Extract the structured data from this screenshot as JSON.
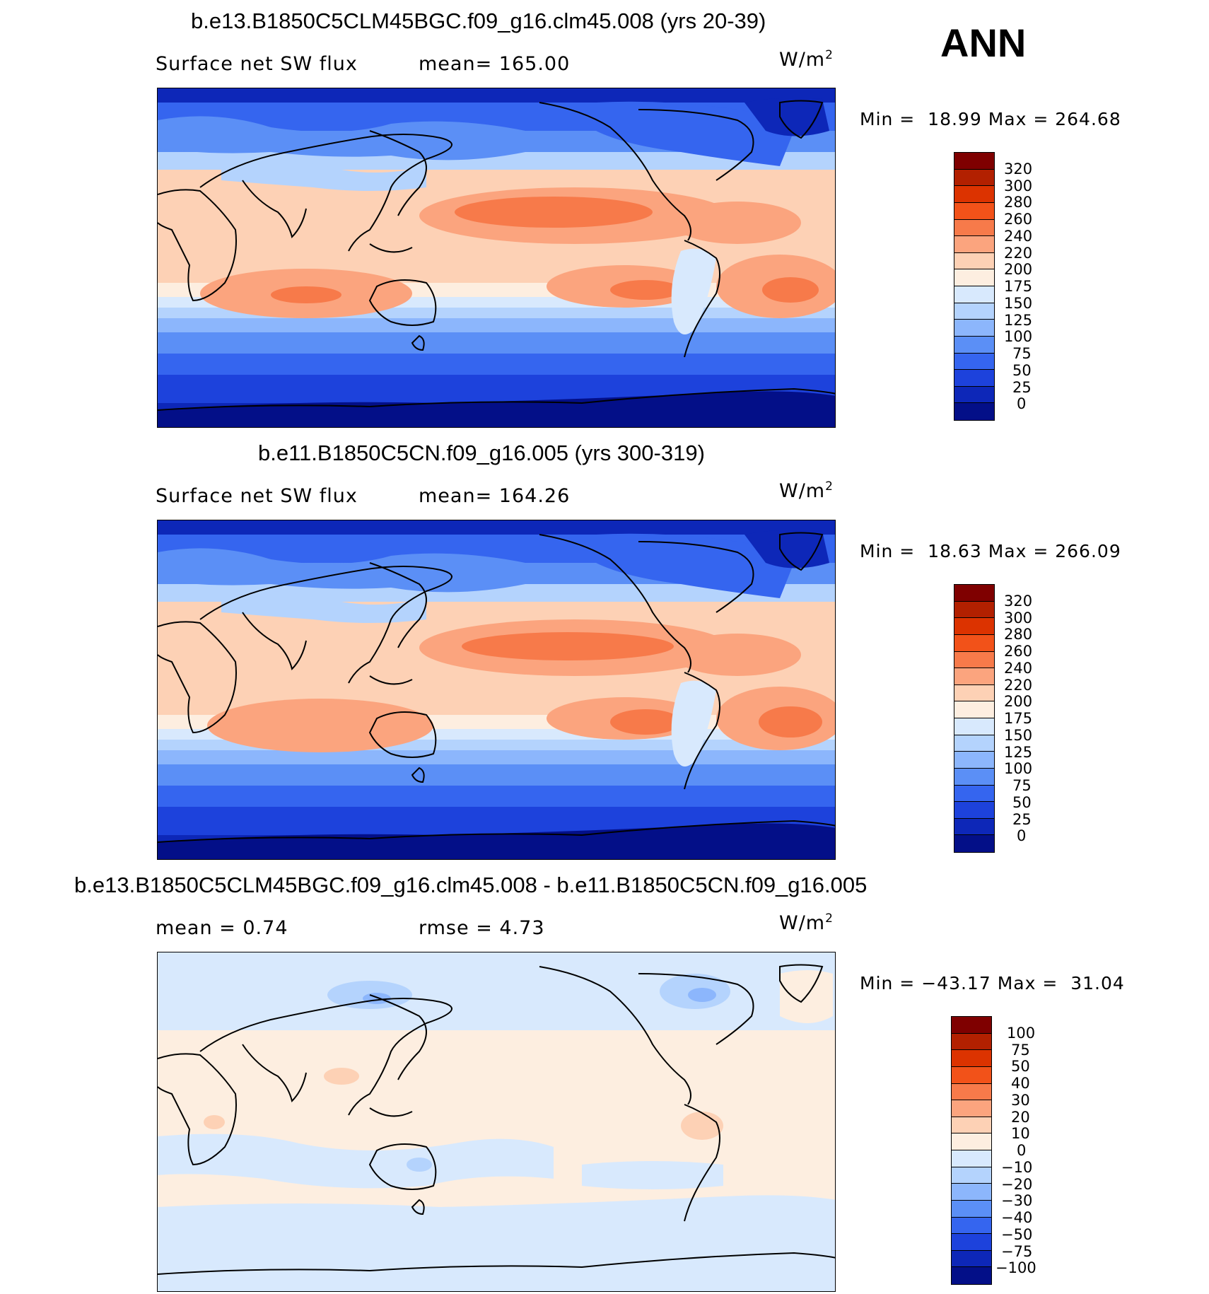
{
  "season": "ANN",
  "panels": [
    {
      "title": "b.e13.B1850C5CLM45BGC.f09_g16.clm45.008 (yrs 20-39)",
      "left_label": "Surface net SW flux",
      "stat_label": "mean=",
      "stat_value": "165.00",
      "units": "W/m",
      "units_sup": "2",
      "min_label": "Min =",
      "min_value": "18.99",
      "max_label": "Max =",
      "max_value": "264.68",
      "colorbar_levels": [
        "320",
        "300",
        "280",
        "260",
        "240",
        "220",
        "200",
        "175",
        "150",
        "125",
        "100",
        "75",
        "50",
        "25",
        "0"
      ]
    },
    {
      "title": "b.e11.B1850C5CN.f09_g16.005 (yrs 300-319)",
      "left_label": "Surface net SW flux",
      "stat_label": "mean=",
      "stat_value": "164.26",
      "units": "W/m",
      "units_sup": "2",
      "min_label": "Min =",
      "min_value": "18.63",
      "max_label": "Max =",
      "max_value": "266.09",
      "colorbar_levels": [
        "320",
        "300",
        "280",
        "260",
        "240",
        "220",
        "200",
        "175",
        "150",
        "125",
        "100",
        "75",
        "50",
        "25",
        "0"
      ]
    },
    {
      "title": "b.e13.B1850C5CLM45BGC.f09_g16.clm45.008 - b.e11.B1850C5CN.f09_g16.005",
      "left_label": "mean =",
      "left_value": "0.74",
      "stat_label": "rmse =",
      "stat_value": "4.73",
      "units": "W/m",
      "units_sup": "2",
      "min_label": "Min =",
      "min_value": "−43.17",
      "max_label": "Max =",
      "max_value": "31.04",
      "colorbar_levels": [
        "100",
        "75",
        "50",
        "40",
        "30",
        "20",
        "10",
        "0",
        "−10",
        "−20",
        "−30",
        "−40",
        "−50",
        "−75",
        "−100"
      ]
    }
  ],
  "colors": {
    "abs_scale": [
      "#7f0000",
      "#b22000",
      "#dc3300",
      "#f25219",
      "#f77a4a",
      "#fba47e",
      "#fdd1b5",
      "#fdeee0",
      "#d8e9fd",
      "#b4d3fd",
      "#8cb6fc",
      "#5b8ff6",
      "#3565ef",
      "#1d42dc",
      "#0d27b8",
      "#030f88"
    ],
    "diff_scale": [
      "#7f0000",
      "#b22000",
      "#dc3300",
      "#f25219",
      "#f77a4a",
      "#fba47e",
      "#fdd1b5",
      "#fdeee0",
      "#d8e9fd",
      "#b4d3fd",
      "#8cb6fc",
      "#5b8ff6",
      "#3565ef",
      "#1d42dc",
      "#0d27b8",
      "#030f88"
    ],
    "land_outline": "#000000"
  }
}
